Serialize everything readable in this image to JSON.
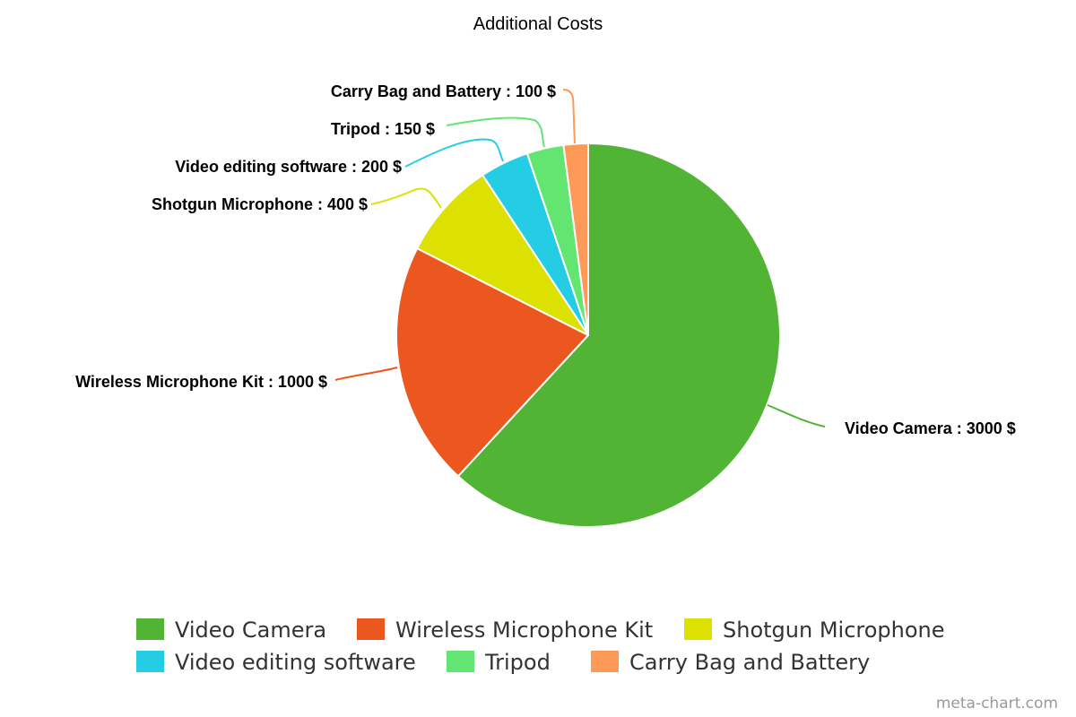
{
  "chart_data": {
    "type": "pie",
    "title": "Additional Costs",
    "unit": "$",
    "slices": [
      {
        "label": "Video Camera",
        "value": 3000,
        "color": "#52b435",
        "data_label": "Video Camera : 3000 $"
      },
      {
        "label": "Wireless Microphone Kit",
        "value": 1000,
        "color": "#eb571f",
        "data_label": "Wireless Microphone Kit : 1000 $"
      },
      {
        "label": "Shotgun Microphone",
        "value": 400,
        "color": "#dde101",
        "data_label": "Shotgun Microphone : 400 $"
      },
      {
        "label": "Video editing software",
        "value": 200,
        "color": "#24cde4",
        "data_label": "Video editing software : 200 $"
      },
      {
        "label": "Tripod",
        "value": 150,
        "color": "#63e572",
        "data_label": "Tripod : 150 $"
      },
      {
        "label": "Carry Bag and Battery",
        "value": 100,
        "color": "#ff9957",
        "data_label": "Carry Bag and Battery : 100 $"
      }
    ],
    "legend_position": "bottom"
  },
  "credit": "meta-chart.com"
}
